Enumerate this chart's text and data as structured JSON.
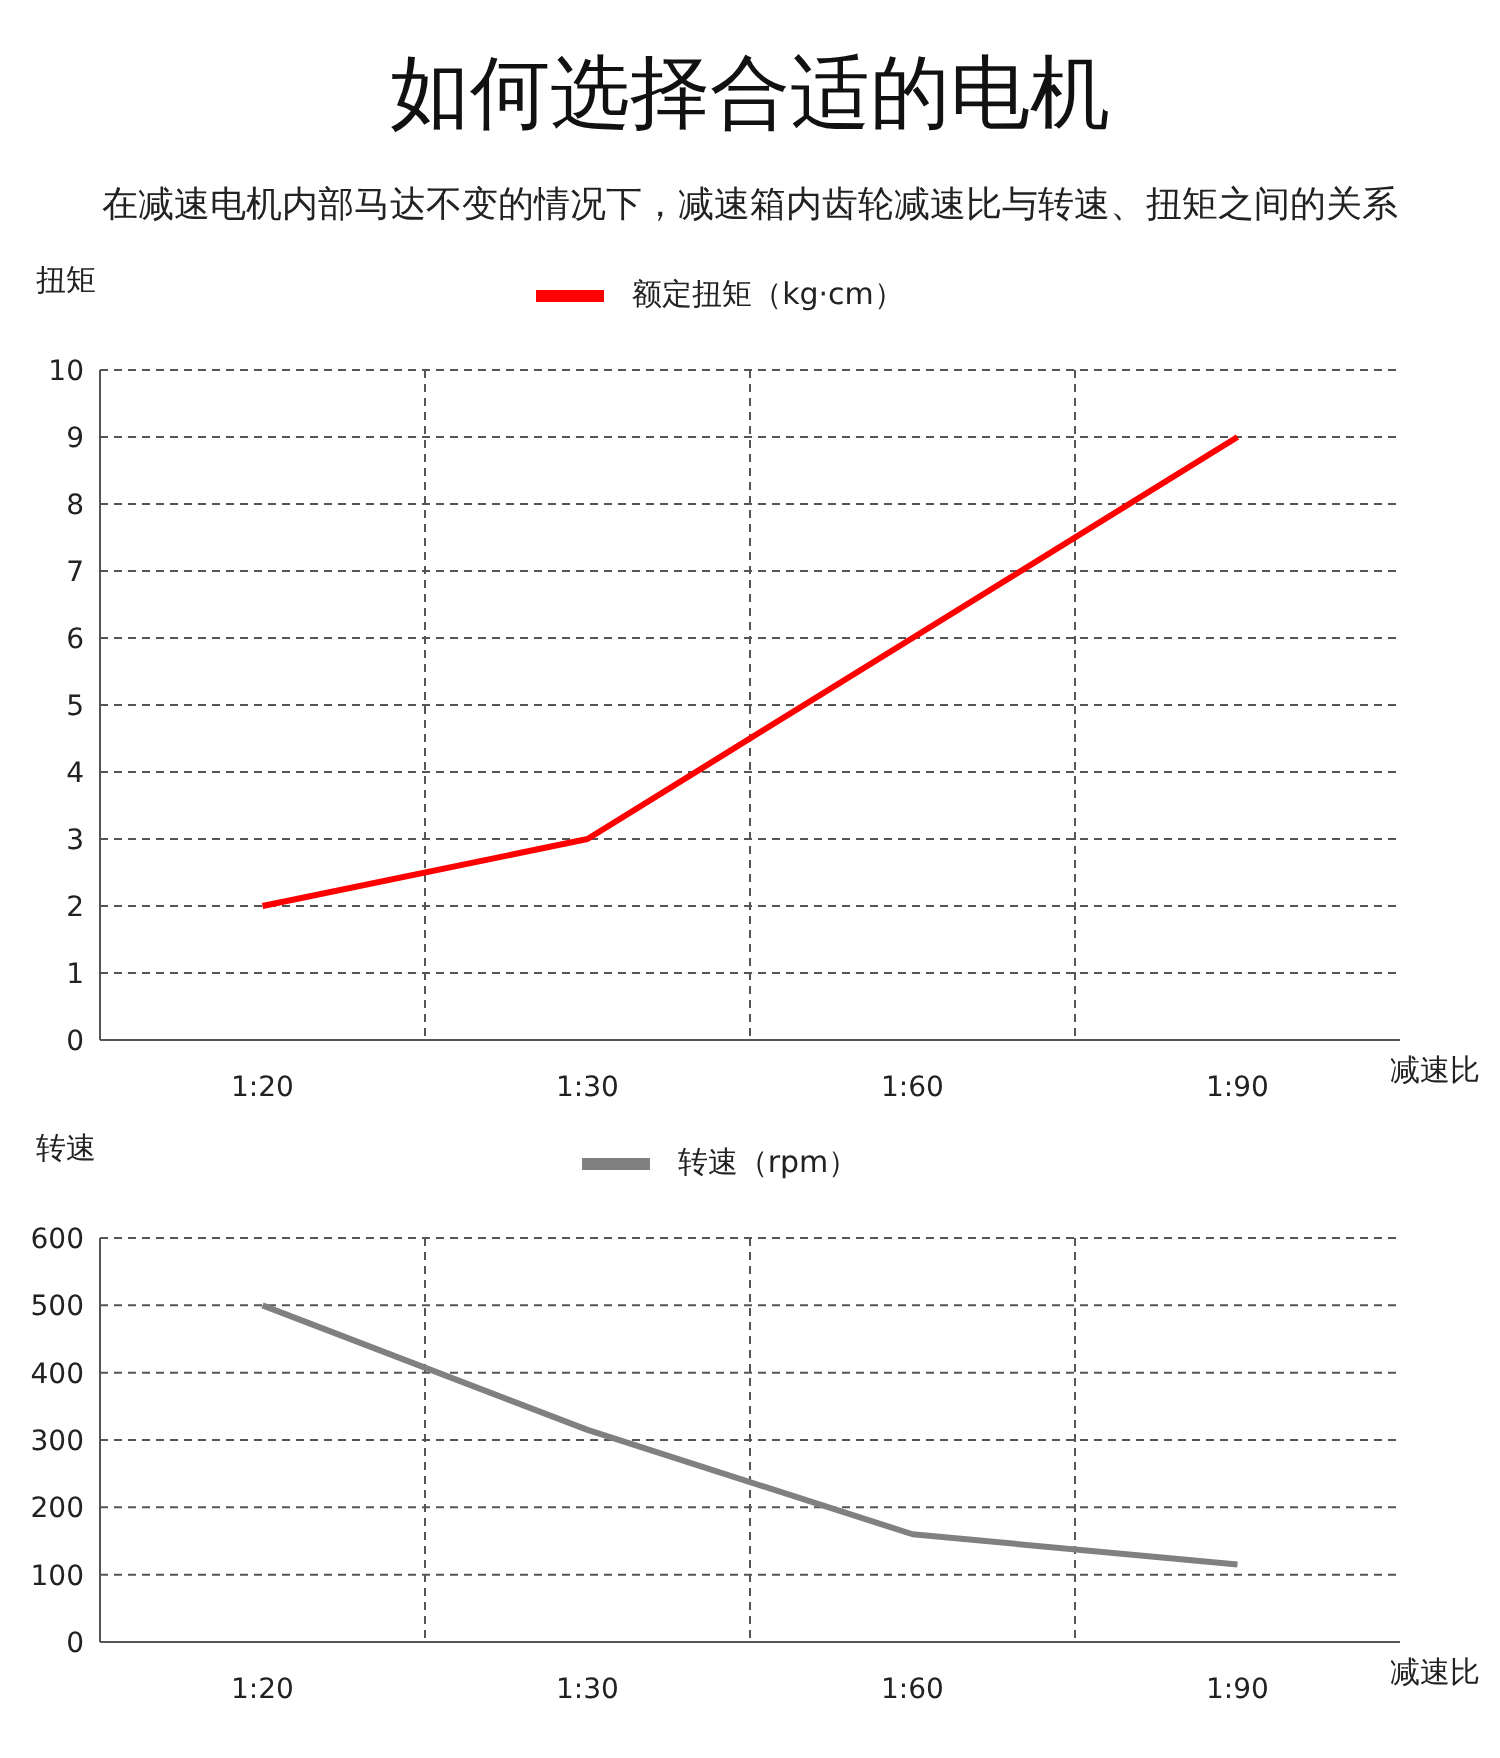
{
  "chart_data": [
    {
      "type": "line",
      "title": "如何选择合适的电机",
      "subtitle": "在减速电机内部马达不变的情况下，减速箱内齿轮减速比与转速、扭矩之间的关系",
      "xlabel": "减速比",
      "ylabel": "扭矩",
      "categories": [
        "1:20",
        "1:30",
        "1:60",
        "1:90"
      ],
      "series": [
        {
          "name": "额定扭矩（kg·cm）",
          "color": "#ff0000",
          "values": [
            2,
            3,
            6,
            9
          ]
        }
      ],
      "ylim": [
        0,
        10
      ],
      "yticks": [
        0,
        1,
        2,
        3,
        4,
        5,
        6,
        7,
        8,
        9,
        10
      ],
      "grid": true,
      "legend": "top",
      "marker": "none",
      "line_style": "solid"
    },
    {
      "type": "line",
      "xlabel": "减速比",
      "ylabel": "转速",
      "categories": [
        "1:20",
        "1:30",
        "1:60",
        "1:90"
      ],
      "series": [
        {
          "name": "转速（rpm）",
          "color": "#808080",
          "values": [
            500,
            315,
            160,
            115
          ]
        }
      ],
      "ylim": [
        0,
        600
      ],
      "yticks": [
        0,
        100,
        200,
        300,
        400,
        500,
        600
      ],
      "grid": true,
      "legend": "top",
      "marker": "none",
      "line_style": "solid"
    }
  ]
}
